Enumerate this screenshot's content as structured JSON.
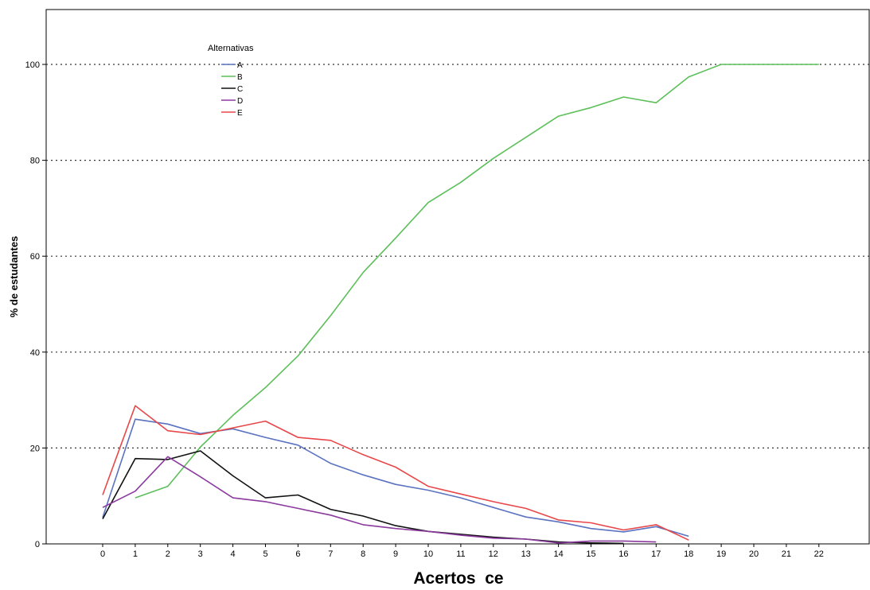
{
  "chart_data": {
    "type": "line",
    "xlabel": "Acertos  ce",
    "ylabel": "% de estudantes",
    "ylim": [
      0,
      110
    ],
    "xlim": [
      0,
      22
    ],
    "y_ticks": [
      0,
      20,
      40,
      60,
      80,
      100
    ],
    "x_ticks": [
      0,
      1,
      2,
      3,
      4,
      5,
      6,
      7,
      8,
      9,
      10,
      11,
      12,
      13,
      14,
      15,
      16,
      17,
      18,
      19,
      20,
      21,
      22
    ],
    "grid": "horizontal dotted",
    "legend": {
      "title": "Alternativas",
      "placement": "top-left"
    },
    "series": [
      {
        "name": "A",
        "color": "#5a72c0",
        "x": [
          0,
          1,
          2,
          3,
          4,
          5,
          6,
          7,
          8,
          9,
          10,
          11,
          12,
          13,
          14,
          15,
          16,
          17,
          18
        ],
        "y": [
          5.5,
          26,
          25,
          23,
          24,
          22.2,
          20.6,
          16.8,
          14.4,
          12.4,
          11.2,
          9.6,
          7.6,
          5.6,
          4.6,
          3.2,
          2.5,
          3.6,
          1.6
        ]
      },
      {
        "name": "B",
        "color": "#5dbf5a",
        "x": [
          1,
          2,
          3,
          4,
          5,
          6,
          7,
          8,
          9,
          10,
          11,
          12,
          13,
          14,
          15,
          16,
          17,
          18,
          19,
          20,
          21,
          22
        ],
        "y": [
          9.6,
          12,
          20.2,
          26.8,
          32.6,
          39.2,
          47.6,
          56.6,
          63.8,
          71.2,
          75.4,
          80.4,
          84.8,
          89.2,
          91,
          93.2,
          92,
          97.4,
          100,
          100,
          100,
          100
        ]
      },
      {
        "name": "C",
        "color": "#111111",
        "x": [
          0,
          1,
          2,
          3,
          4,
          5,
          6,
          7,
          8,
          9,
          10,
          11,
          12,
          13,
          14,
          15,
          16
        ],
        "y": [
          5.2,
          17.8,
          17.6,
          19.4,
          14.2,
          9.6,
          10.2,
          7.2,
          5.8,
          3.8,
          2.6,
          2,
          1.4,
          1,
          0.4,
          0.2,
          0.1
        ]
      },
      {
        "name": "D",
        "color": "#8b3a9e",
        "x": [
          0,
          1,
          2,
          3,
          4,
          5,
          6,
          7,
          8,
          9,
          10,
          11,
          12,
          13,
          14,
          15,
          16,
          17
        ],
        "y": [
          7.6,
          11,
          18.2,
          14,
          9.6,
          8.8,
          7.4,
          6,
          4,
          3.2,
          2.6,
          1.8,
          1.2,
          1,
          0.2,
          0.6,
          0.6,
          0.4
        ]
      },
      {
        "name": "E",
        "color": "#e8474a",
        "x": [
          0,
          1,
          2,
          3,
          4,
          5,
          6,
          7,
          8,
          9,
          10,
          11,
          12,
          13,
          14,
          15,
          16,
          17,
          18
        ],
        "y": [
          10.2,
          28.8,
          23.6,
          22.8,
          24.2,
          25.6,
          22.2,
          21.6,
          18.6,
          16,
          12,
          10.4,
          8.8,
          7.4,
          5,
          4.4,
          2.9,
          4,
          0.8
        ]
      }
    ]
  }
}
